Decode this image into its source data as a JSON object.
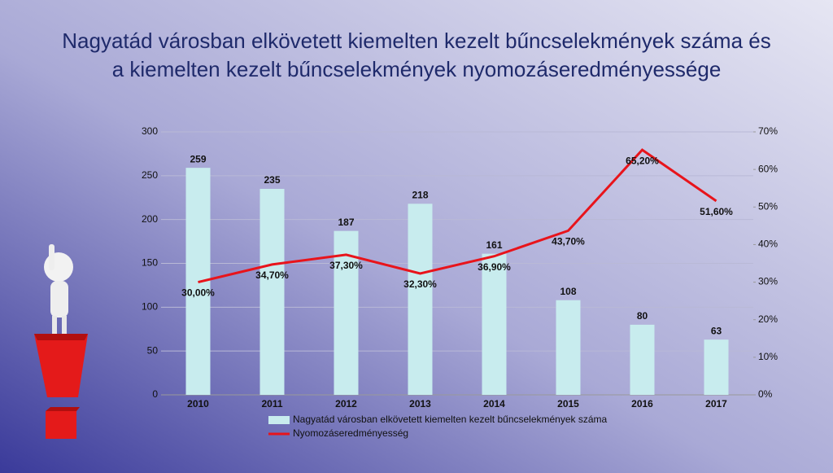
{
  "chart_data": {
    "type": "bar_line",
    "title": [
      "Nagyatád városban elkövetett kiemelten kezelt bűncselekmények száma és",
      "a kiemelten kezelt bűncselekmények nyomozáseredményessége"
    ],
    "categories": [
      "2010",
      "2011",
      "2012",
      "2013",
      "2014",
      "2015",
      "2016",
      "2017"
    ],
    "series": [
      {
        "name": "Nagyatád városban elkövetett kiemelten kezelt bűncselekmények száma",
        "type": "bar",
        "color": "#c8ecee",
        "values": [
          259,
          235,
          187,
          218,
          161,
          108,
          80,
          63
        ]
      },
      {
        "name": "Nyomozáseredményesség",
        "type": "line",
        "color": "#e8141b",
        "axis": "y2",
        "values": [
          30.0,
          34.7,
          37.3,
          32.3,
          36.9,
          43.7,
          65.2,
          51.6
        ],
        "value_labels": [
          "30,00%",
          "34,70%",
          "37,30%",
          "32,30%",
          "36,90%",
          "43,70%",
          "65,20%",
          "51,60%"
        ]
      }
    ],
    "ylim": [
      0,
      300
    ],
    "yticks": [
      0,
      50,
      100,
      150,
      200,
      250,
      300
    ],
    "y2lim": [
      0,
      70
    ],
    "y2ticks": [
      {
        "value": 0,
        "label": "0%"
      },
      {
        "value": 10,
        "label": "10%"
      },
      {
        "value": 20,
        "label": "20%"
      },
      {
        "value": 30,
        "label": "30%"
      },
      {
        "value": 40,
        "label": "40%"
      },
      {
        "value": 50,
        "label": "50%"
      },
      {
        "value": 60,
        "label": "60%"
      },
      {
        "value": 70,
        "label": "70%"
      }
    ],
    "grid": true,
    "legend": "bottom"
  }
}
